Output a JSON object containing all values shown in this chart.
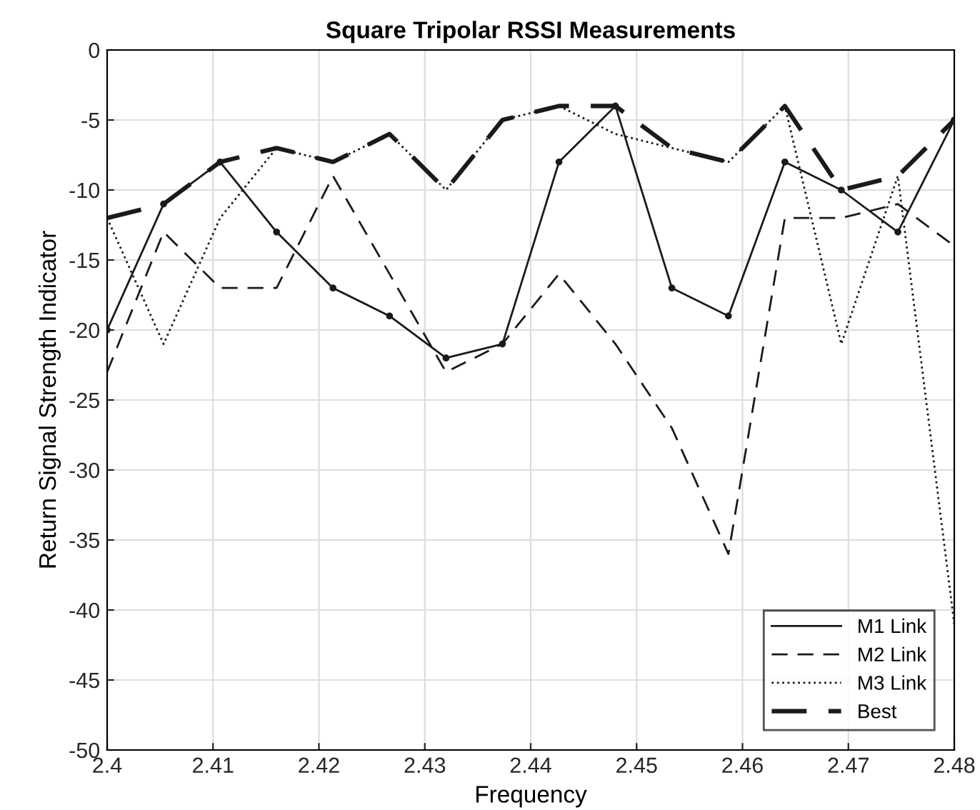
{
  "chart_data": {
    "type": "line",
    "title": "Square Tripolar RSSI Measurements",
    "xlabel": "Frequency",
    "ylabel": "Return Signal Strength Indicator",
    "x": [
      2.4,
      2.40533,
      2.41067,
      2.416,
      2.42133,
      2.42667,
      2.432,
      2.43733,
      2.44267,
      2.448,
      2.45333,
      2.45867,
      2.464,
      2.46933,
      2.47467,
      2.48
    ],
    "series": [
      {
        "name": "M1 Link",
        "color": "#1a1a1a",
        "line_style": "solid",
        "marker": "circle",
        "values": [
          -20,
          -11,
          -8,
          -13,
          -17,
          -19,
          -22,
          -21,
          -8,
          -4,
          -17,
          -19,
          -8,
          -10,
          -13,
          -5
        ]
      },
      {
        "name": "M2 Link",
        "color": "#1a1a1a",
        "line_style": "dashed",
        "values": [
          -23,
          -13,
          -17,
          -17,
          -9,
          -16,
          -23,
          -21,
          -16,
          -21,
          -27,
          -36,
          -12,
          -12,
          -11,
          -14
        ]
      },
      {
        "name": "M3 Link",
        "color": "#1a1a1a",
        "line_style": "dotted",
        "values": [
          -12,
          -21,
          -12,
          -7,
          -8,
          -6,
          -10,
          -5,
          -4,
          -6,
          -7,
          -8,
          -4,
          -21,
          -9,
          -41
        ]
      },
      {
        "name": "Best",
        "color": "#1a1a1a",
        "line_style": "dashed",
        "values": [
          -12,
          -11,
          -8,
          -7,
          -8,
          -6,
          -10,
          -5,
          -4,
          -4,
          -7,
          -8,
          -4,
          -10,
          -9,
          -5
        ]
      }
    ],
    "xlim": [
      2.4,
      2.48
    ],
    "xticks": [
      2.4,
      2.41,
      2.42,
      2.43,
      2.44,
      2.45,
      2.46,
      2.47,
      2.48
    ],
    "ylim": [
      -50,
      0
    ],
    "yticks": [
      -50,
      -45,
      -40,
      -35,
      -30,
      -25,
      -20,
      -15,
      -10,
      -5,
      0
    ],
    "grid": true,
    "legend": "bottom right"
  }
}
